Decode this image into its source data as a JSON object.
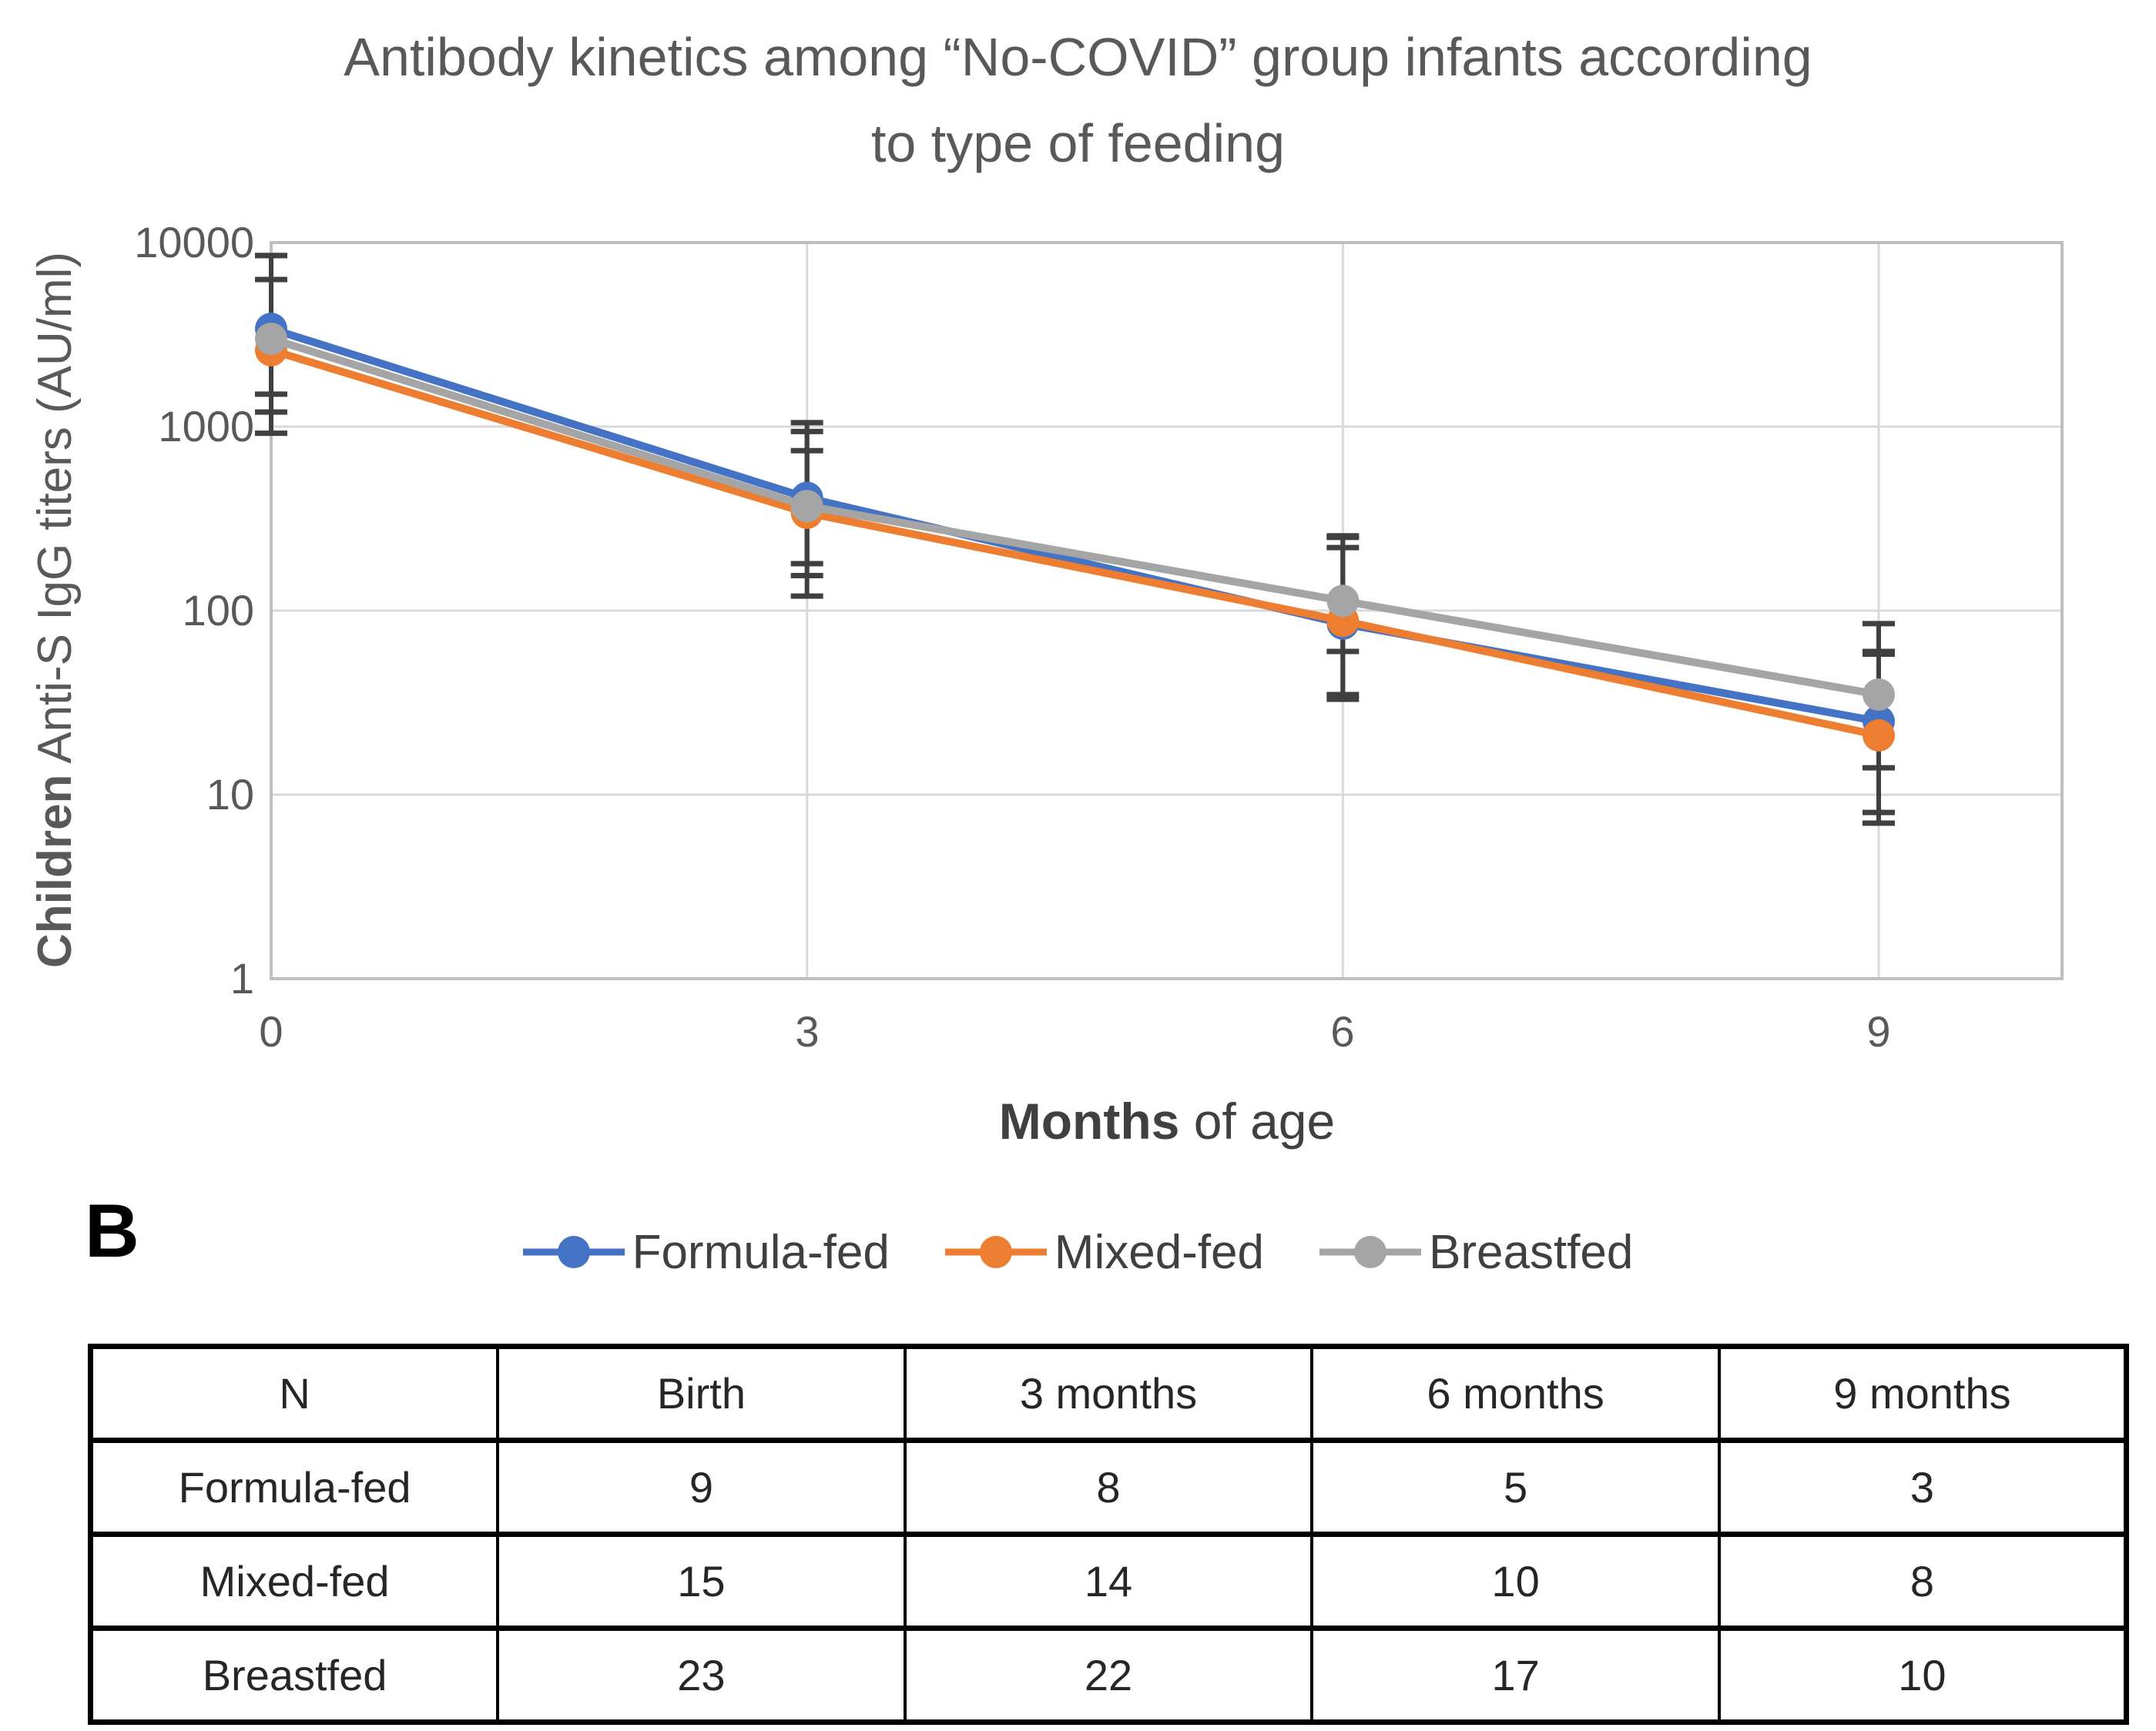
{
  "chart": {
    "title_lines": [
      "Antibody kinetics among “No-COVID” group infants according",
      "to type of feeding"
    ],
    "y_axis": {
      "label_bold": "Children",
      "label_rest": " Anti-S IgG titers (AU/ml)",
      "ticks": [
        "10000",
        "1000",
        "100",
        "10",
        "1"
      ]
    },
    "x_axis": {
      "label_bold": "Months",
      "label_rest": " of age",
      "ticks": [
        "0",
        "3",
        "6",
        "9"
      ]
    }
  },
  "chart_data": {
    "type": "line",
    "x": [
      0,
      3,
      6,
      9
    ],
    "x_label": "Months of age",
    "y_label": "Children Anti-S IgG titers (AU/ml)",
    "y_scale": "log10",
    "ylim": [
      1,
      10000
    ],
    "grid": true,
    "legend_position": "bottom",
    "gridline_color": "#D9D9D9",
    "frame_color": "#BFBFBF",
    "error_bar_color": "#404040",
    "series": [
      {
        "name": "Formula-fed",
        "color": "#4472C4",
        "values": [
          3400,
          410,
          85,
          25
        ],
        "err_low": [
          1500,
          120,
          33,
          8
        ],
        "err_high": [
          8500,
          1050,
          250,
          60
        ]
      },
      {
        "name": "Mixed-fed",
        "color": "#ED7D31",
        "values": [
          2600,
          340,
          88,
          21
        ],
        "err_low": [
          920,
          180,
          35,
          7
        ],
        "err_high": [
          6300,
          740,
          220,
          58
        ]
      },
      {
        "name": "Breastfed",
        "color": "#A5A5A5",
        "values": [
          3000,
          370,
          113,
          35
        ],
        "err_low": [
          1200,
          155,
          60,
          14
        ],
        "err_high": [
          8500,
          940,
          255,
          85
        ]
      }
    ]
  },
  "panel_label": "B",
  "table": {
    "headers": [
      "N",
      "Birth",
      "3 months",
      "6 months",
      "9 months"
    ],
    "rows": [
      {
        "label": "Formula-fed",
        "values": [
          "9",
          "8",
          "5",
          "3"
        ]
      },
      {
        "label": "Mixed-fed",
        "values": [
          "15",
          "14",
          "10",
          "8"
        ]
      },
      {
        "label": "Breastfed",
        "values": [
          "23",
          "22",
          "17",
          "10"
        ]
      }
    ]
  }
}
